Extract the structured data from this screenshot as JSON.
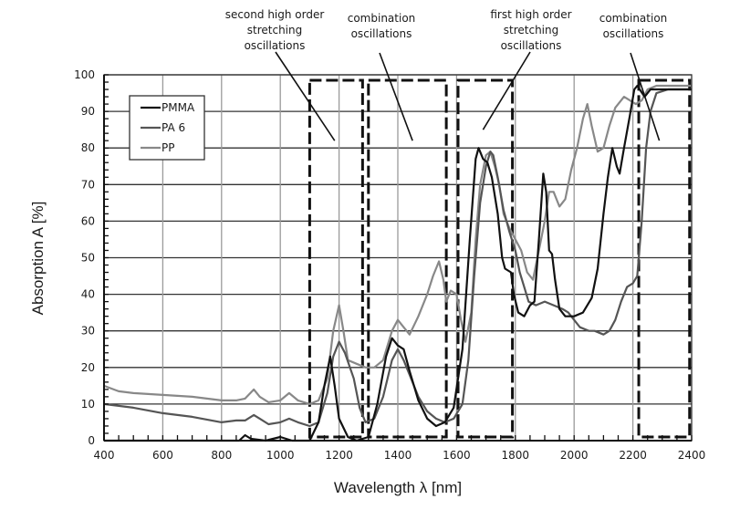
{
  "chart_data": {
    "type": "line",
    "title": "",
    "xlabel": "Wavelength λ [nm]",
    "ylabel": "Absorption A [%]",
    "xlim": [
      400,
      2400
    ],
    "ylim": [
      0,
      100
    ],
    "x_ticks": [
      400,
      600,
      800,
      1000,
      1200,
      1400,
      1600,
      1800,
      2000,
      2200,
      2400
    ],
    "y_ticks": [
      0,
      10,
      20,
      30,
      40,
      50,
      60,
      70,
      80,
      90,
      100
    ],
    "grid": true,
    "legend_position": "top-left",
    "series": [
      {
        "name": "PMMA",
        "color": "#111111",
        "points": [
          [
            400,
            0
          ],
          [
            800,
            0
          ],
          [
            860,
            0
          ],
          [
            880,
            1.5
          ],
          [
            900,
            0.5
          ],
          [
            950,
            0
          ],
          [
            1000,
            1
          ],
          [
            1040,
            0
          ],
          [
            1100,
            0
          ],
          [
            1130,
            5
          ],
          [
            1150,
            15
          ],
          [
            1170,
            23
          ],
          [
            1185,
            15
          ],
          [
            1200,
            6
          ],
          [
            1230,
            1
          ],
          [
            1260,
            0
          ],
          [
            1300,
            1
          ],
          [
            1330,
            10
          ],
          [
            1360,
            23
          ],
          [
            1380,
            28
          ],
          [
            1400,
            26
          ],
          [
            1420,
            25
          ],
          [
            1440,
            19
          ],
          [
            1470,
            11
          ],
          [
            1500,
            6
          ],
          [
            1530,
            4
          ],
          [
            1560,
            5
          ],
          [
            1590,
            9
          ],
          [
            1620,
            25
          ],
          [
            1645,
            55
          ],
          [
            1665,
            77
          ],
          [
            1675,
            80
          ],
          [
            1690,
            77
          ],
          [
            1705,
            76
          ],
          [
            1720,
            72
          ],
          [
            1740,
            62
          ],
          [
            1755,
            50
          ],
          [
            1765,
            47
          ],
          [
            1785,
            46
          ],
          [
            1795,
            40
          ],
          [
            1810,
            35
          ],
          [
            1830,
            34
          ],
          [
            1850,
            37
          ],
          [
            1865,
            38
          ],
          [
            1880,
            55
          ],
          [
            1895,
            73
          ],
          [
            1905,
            68
          ],
          [
            1915,
            52
          ],
          [
            1925,
            51
          ],
          [
            1935,
            44
          ],
          [
            1950,
            36
          ],
          [
            1970,
            34
          ],
          [
            2000,
            34
          ],
          [
            2030,
            35
          ],
          [
            2060,
            39
          ],
          [
            2080,
            47
          ],
          [
            2100,
            62
          ],
          [
            2115,
            72
          ],
          [
            2130,
            80
          ],
          [
            2145,
            75
          ],
          [
            2155,
            73
          ],
          [
            2170,
            80
          ],
          [
            2190,
            89
          ],
          [
            2205,
            96
          ],
          [
            2215,
            97
          ],
          [
            2240,
            94
          ],
          [
            2260,
            96
          ],
          [
            2300,
            96
          ],
          [
            2400,
            96
          ]
        ]
      },
      {
        "name": "PA 6",
        "color": "#555555",
        "points": [
          [
            400,
            10
          ],
          [
            500,
            9
          ],
          [
            600,
            7.5
          ],
          [
            700,
            6.5
          ],
          [
            800,
            5
          ],
          [
            850,
            5.5
          ],
          [
            880,
            5.5
          ],
          [
            910,
            7
          ],
          [
            930,
            6
          ],
          [
            960,
            4.5
          ],
          [
            1000,
            5
          ],
          [
            1030,
            6
          ],
          [
            1060,
            5
          ],
          [
            1100,
            4
          ],
          [
            1130,
            5
          ],
          [
            1160,
            13
          ],
          [
            1180,
            23
          ],
          [
            1200,
            27
          ],
          [
            1220,
            24
          ],
          [
            1250,
            17
          ],
          [
            1270,
            9
          ],
          [
            1290,
            5
          ],
          [
            1320,
            6
          ],
          [
            1350,
            12
          ],
          [
            1380,
            22
          ],
          [
            1400,
            25
          ],
          [
            1420,
            22
          ],
          [
            1440,
            18
          ],
          [
            1470,
            12
          ],
          [
            1500,
            8
          ],
          [
            1530,
            6
          ],
          [
            1560,
            5
          ],
          [
            1590,
            6
          ],
          [
            1620,
            10
          ],
          [
            1640,
            22
          ],
          [
            1660,
            45
          ],
          [
            1680,
            65
          ],
          [
            1700,
            75
          ],
          [
            1715,
            79
          ],
          [
            1725,
            78
          ],
          [
            1740,
            72
          ],
          [
            1760,
            63
          ],
          [
            1780,
            57
          ],
          [
            1800,
            52
          ],
          [
            1815,
            46
          ],
          [
            1830,
            42
          ],
          [
            1845,
            38
          ],
          [
            1870,
            37
          ],
          [
            1900,
            38
          ],
          [
            1930,
            37
          ],
          [
            1960,
            36
          ],
          [
            1980,
            35
          ],
          [
            2000,
            33
          ],
          [
            2020,
            31
          ],
          [
            2050,
            30
          ],
          [
            2070,
            30
          ],
          [
            2100,
            29
          ],
          [
            2120,
            30
          ],
          [
            2140,
            33
          ],
          [
            2160,
            38
          ],
          [
            2180,
            42
          ],
          [
            2200,
            43
          ],
          [
            2215,
            45
          ],
          [
            2230,
            60
          ],
          [
            2245,
            80
          ],
          [
            2260,
            90
          ],
          [
            2280,
            95
          ],
          [
            2320,
            96
          ],
          [
            2400,
            96
          ]
        ]
      },
      {
        "name": "PP",
        "color": "#888888",
        "points": [
          [
            400,
            15
          ],
          [
            450,
            13.5
          ],
          [
            500,
            13
          ],
          [
            600,
            12.5
          ],
          [
            700,
            12
          ],
          [
            800,
            11
          ],
          [
            850,
            11
          ],
          [
            880,
            11.5
          ],
          [
            910,
            14
          ],
          [
            930,
            12
          ],
          [
            960,
            10.5
          ],
          [
            1000,
            11
          ],
          [
            1030,
            13
          ],
          [
            1060,
            11
          ],
          [
            1100,
            10
          ],
          [
            1130,
            11
          ],
          [
            1160,
            17
          ],
          [
            1180,
            30
          ],
          [
            1200,
            37
          ],
          [
            1215,
            30
          ],
          [
            1230,
            22
          ],
          [
            1260,
            21
          ],
          [
            1290,
            20
          ],
          [
            1320,
            20
          ],
          [
            1350,
            22
          ],
          [
            1380,
            30
          ],
          [
            1400,
            33
          ],
          [
            1420,
            31
          ],
          [
            1440,
            29
          ],
          [
            1470,
            34
          ],
          [
            1500,
            40
          ],
          [
            1520,
            45
          ],
          [
            1540,
            49
          ],
          [
            1555,
            44
          ],
          [
            1565,
            38
          ],
          [
            1580,
            41
          ],
          [
            1600,
            40
          ],
          [
            1615,
            33
          ],
          [
            1630,
            27
          ],
          [
            1650,
            35
          ],
          [
            1665,
            55
          ],
          [
            1680,
            70
          ],
          [
            1700,
            78
          ],
          [
            1715,
            79
          ],
          [
            1730,
            75
          ],
          [
            1745,
            70
          ],
          [
            1760,
            62
          ],
          [
            1780,
            58
          ],
          [
            1800,
            55
          ],
          [
            1820,
            52
          ],
          [
            1840,
            46
          ],
          [
            1860,
            44
          ],
          [
            1880,
            52
          ],
          [
            1900,
            60
          ],
          [
            1915,
            68
          ],
          [
            1930,
            68
          ],
          [
            1950,
            64
          ],
          [
            1970,
            66
          ],
          [
            1990,
            74
          ],
          [
            2010,
            80
          ],
          [
            2030,
            88
          ],
          [
            2045,
            92
          ],
          [
            2060,
            86
          ],
          [
            2080,
            79
          ],
          [
            2100,
            80
          ],
          [
            2120,
            86
          ],
          [
            2140,
            91
          ],
          [
            2170,
            94
          ],
          [
            2190,
            93
          ],
          [
            2210,
            92
          ],
          [
            2230,
            93
          ],
          [
            2250,
            96
          ],
          [
            2280,
            97
          ],
          [
            2320,
            97
          ],
          [
            2400,
            97
          ]
        ]
      }
    ],
    "regions": [
      {
        "x": [
          1100,
          1280
        ],
        "y": [
          1,
          98.5
        ]
      },
      {
        "x": [
          1300,
          1565
        ],
        "y": [
          1,
          98.5
        ]
      },
      {
        "x": [
          1605,
          1790
        ],
        "y": [
          1,
          98.5
        ]
      },
      {
        "x": [
          2220,
          2393
        ],
        "y": [
          1,
          98.5
        ]
      }
    ],
    "annotations": [
      {
        "lines": [
          "second high order",
          "stretching",
          "oscillations"
        ],
        "target": [
          1185,
          82
        ]
      },
      {
        "lines": [
          "combination",
          "oscillations"
        ],
        "target": [
          1450,
          82
        ]
      },
      {
        "lines": [
          "first high order",
          "stretching",
          "oscillations"
        ],
        "target": [
          1690,
          85
        ]
      },
      {
        "lines": [
          "combination",
          "oscillations"
        ],
        "target": [
          2290,
          82
        ]
      }
    ]
  }
}
